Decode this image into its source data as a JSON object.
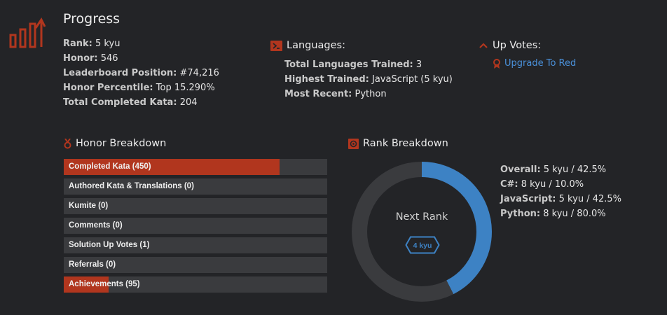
{
  "colors": {
    "accent": "#b1361e",
    "blue": "#3d82c4",
    "track": "#3a3b3e",
    "background": "#232427"
  },
  "progress": {
    "title": "Progress",
    "icon": "progress-chart-icon",
    "stats": [
      {
        "label": "Rank:",
        "value": "5 kyu"
      },
      {
        "label": "Honor:",
        "value": "546"
      },
      {
        "label": "Leaderboard Position:",
        "value": "#74,216"
      },
      {
        "label": "Honor Percentile:",
        "value": "Top 15.290%"
      },
      {
        "label": "Total Completed Kata:",
        "value": "204"
      }
    ]
  },
  "languages": {
    "title": "Languages:",
    "icon": "terminal-icon",
    "stats": [
      {
        "label": "Total Languages Trained:",
        "value": "3"
      },
      {
        "label": "Highest Trained:",
        "value": "JavaScript (5 kyu)"
      },
      {
        "label": "Most Recent:",
        "value": "Python"
      }
    ]
  },
  "up_votes": {
    "title": "Up Votes:",
    "icon": "chevron-up-icon",
    "link_label": "Upgrade To Red",
    "link_icon": "ribbon-icon"
  },
  "honor_breakdown": {
    "title": "Honor Breakdown",
    "icon": "medal-icon",
    "items": [
      {
        "label": "Completed Kata (450)",
        "fill": 0.82
      },
      {
        "label": "Authored Kata & Translations (0)",
        "fill": 0
      },
      {
        "label": "Kumite (0)",
        "fill": 0
      },
      {
        "label": "Comments (0)",
        "fill": 0
      },
      {
        "label": "Solution Up Votes (1)",
        "fill": 0
      },
      {
        "label": "Referrals (0)",
        "fill": 0
      },
      {
        "label": "Achievements (95)",
        "fill": 0.17
      }
    ]
  },
  "rank_breakdown": {
    "title": "Rank Breakdown",
    "icon": "target-icon",
    "next_rank_label": "Next Rank",
    "next_rank_badge": "4 kyu",
    "progress_percent": 42.5,
    "stats": [
      {
        "label": "Overall:",
        "value": "5 kyu / 42.5%"
      },
      {
        "label": "C#:",
        "value": "8 kyu / 10.0%"
      },
      {
        "label": "JavaScript:",
        "value": "5 kyu / 42.5%"
      },
      {
        "label": "Python:",
        "value": "8 kyu / 80.0%"
      }
    ]
  }
}
